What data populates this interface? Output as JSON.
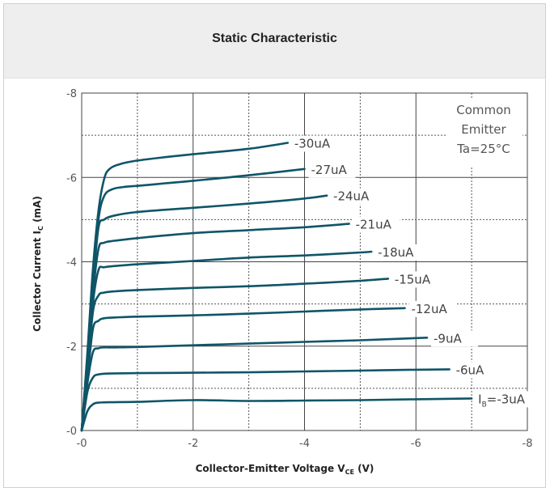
{
  "chart_data": {
    "type": "line",
    "title": "Static Characteristic",
    "xlabel": {
      "main": "Collector-Emitter Voltage V",
      "sub": "CE",
      "tail": " (V)"
    },
    "ylabel": {
      "main": "Collector Current I",
      "sub": "C",
      "tail": " (mA)"
    },
    "xlim": [
      0,
      -8
    ],
    "ylim": [
      0,
      -8
    ],
    "x_ticks": [
      {
        "value": 0,
        "label": "-0"
      },
      {
        "value": -2,
        "label": "-2"
      },
      {
        "value": -4,
        "label": "-4"
      },
      {
        "value": -6,
        "label": "-6"
      },
      {
        "value": -8,
        "label": "-8"
      }
    ],
    "y_ticks": [
      {
        "value": 0,
        "label": "-0"
      },
      {
        "value": -2,
        "label": "-2"
      },
      {
        "value": -4,
        "label": "-4"
      },
      {
        "value": -6,
        "label": "-6"
      },
      {
        "value": -8,
        "label": "-8"
      }
    ],
    "minor_grid": [
      -1,
      -3,
      -5,
      -7
    ],
    "grid": true,
    "annotation": [
      "Common",
      "Emitter",
      "Ta=25°C"
    ],
    "line_color": "#0f5568",
    "series": [
      {
        "name": "-30uA",
        "label_prefix": "",
        "label_sub": "",
        "label_text": "-30uA",
        "points": [
          [
            0,
            0
          ],
          [
            -0.1,
            -1.8
          ],
          [
            -0.2,
            -3.8
          ],
          [
            -0.3,
            -5.2
          ],
          [
            -0.4,
            -5.95
          ],
          [
            -0.5,
            -6.2
          ],
          [
            -0.7,
            -6.32
          ],
          [
            -1,
            -6.4
          ],
          [
            -1.5,
            -6.48
          ],
          [
            -2,
            -6.55
          ],
          [
            -3,
            -6.68
          ],
          [
            -3.7,
            -6.82
          ]
        ]
      },
      {
        "name": "-27uA",
        "label_prefix": "",
        "label_sub": "",
        "label_text": "-27uA",
        "points": [
          [
            0,
            0
          ],
          [
            -0.1,
            -1.7
          ],
          [
            -0.2,
            -3.6
          ],
          [
            -0.3,
            -5.0
          ],
          [
            -0.4,
            -5.55
          ],
          [
            -0.55,
            -5.72
          ],
          [
            -0.8,
            -5.78
          ],
          [
            -1,
            -5.8
          ],
          [
            -1.5,
            -5.86
          ],
          [
            -2,
            -5.92
          ],
          [
            -3,
            -6.05
          ],
          [
            -4,
            -6.2
          ]
        ]
      },
      {
        "name": "-24uA",
        "label_prefix": "",
        "label_sub": "",
        "label_text": "-24uA",
        "points": [
          [
            0,
            0
          ],
          [
            -0.1,
            -1.6
          ],
          [
            -0.2,
            -3.4
          ],
          [
            -0.3,
            -4.8
          ],
          [
            -0.4,
            -5.0
          ],
          [
            -0.6,
            -5.1
          ],
          [
            -1,
            -5.18
          ],
          [
            -2,
            -5.28
          ],
          [
            -3,
            -5.38
          ],
          [
            -4,
            -5.5
          ],
          [
            -4.4,
            -5.57
          ]
        ]
      },
      {
        "name": "-21uA",
        "label_prefix": "",
        "label_sub": "",
        "label_text": "-21uA",
        "points": [
          [
            0,
            0
          ],
          [
            -0.1,
            -1.5
          ],
          [
            -0.2,
            -3.2
          ],
          [
            -0.3,
            -4.3
          ],
          [
            -0.4,
            -4.45
          ],
          [
            -0.6,
            -4.5
          ],
          [
            -1,
            -4.56
          ],
          [
            -2,
            -4.68
          ],
          [
            -3,
            -4.75
          ],
          [
            -4,
            -4.82
          ],
          [
            -4.8,
            -4.9
          ]
        ]
      },
      {
        "name": "-18uA",
        "label_prefix": "",
        "label_sub": "",
        "label_text": "-18uA",
        "points": [
          [
            0,
            0
          ],
          [
            -0.1,
            -1.4
          ],
          [
            -0.2,
            -3.0
          ],
          [
            -0.3,
            -3.8
          ],
          [
            -0.4,
            -3.87
          ],
          [
            -0.6,
            -3.9
          ],
          [
            -1,
            -3.94
          ],
          [
            -2,
            -4.02
          ],
          [
            -3,
            -4.1
          ],
          [
            -4,
            -4.15
          ],
          [
            -5,
            -4.22
          ],
          [
            -5.2,
            -4.24
          ]
        ]
      },
      {
        "name": "-15uA",
        "label_prefix": "",
        "label_sub": "",
        "label_text": "-15uA",
        "points": [
          [
            0,
            0
          ],
          [
            -0.1,
            -1.3
          ],
          [
            -0.2,
            -2.8
          ],
          [
            -0.3,
            -3.2
          ],
          [
            -0.4,
            -3.27
          ],
          [
            -0.6,
            -3.3
          ],
          [
            -1,
            -3.33
          ],
          [
            -2,
            -3.38
          ],
          [
            -3,
            -3.42
          ],
          [
            -4,
            -3.48
          ],
          [
            -5,
            -3.55
          ],
          [
            -5.5,
            -3.6
          ]
        ]
      },
      {
        "name": "-12uA",
        "label_prefix": "",
        "label_sub": "",
        "label_text": "-12uA",
        "points": [
          [
            0,
            0
          ],
          [
            -0.1,
            -1.2
          ],
          [
            -0.2,
            -2.4
          ],
          [
            -0.3,
            -2.6
          ],
          [
            -0.4,
            -2.66
          ],
          [
            -0.6,
            -2.68
          ],
          [
            -1,
            -2.7
          ],
          [
            -2,
            -2.73
          ],
          [
            -3,
            -2.77
          ],
          [
            -4,
            -2.82
          ],
          [
            -5,
            -2.87
          ],
          [
            -5.8,
            -2.9
          ]
        ]
      },
      {
        "name": "-9uA",
        "label_prefix": "",
        "label_sub": "",
        "label_text": "-9uA",
        "points": [
          [
            0,
            0
          ],
          [
            -0.1,
            -1.1
          ],
          [
            -0.2,
            -1.85
          ],
          [
            -0.3,
            -1.95
          ],
          [
            -0.4,
            -1.97
          ],
          [
            -0.6,
            -1.97
          ],
          [
            -1,
            -1.98
          ],
          [
            -2,
            -2.02
          ],
          [
            -3,
            -2.06
          ],
          [
            -4,
            -2.1
          ],
          [
            -5,
            -2.14
          ],
          [
            -6.2,
            -2.2
          ]
        ]
      },
      {
        "name": "-6uA",
        "label_prefix": "",
        "label_sub": "",
        "label_text": "-6uA",
        "points": [
          [
            0,
            0
          ],
          [
            -0.1,
            -0.9
          ],
          [
            -0.2,
            -1.25
          ],
          [
            -0.3,
            -1.33
          ],
          [
            -0.5,
            -1.35
          ],
          [
            -1,
            -1.36
          ],
          [
            -2,
            -1.37
          ],
          [
            -3,
            -1.38
          ],
          [
            -4,
            -1.4
          ],
          [
            -5,
            -1.42
          ],
          [
            -6,
            -1.44
          ],
          [
            -6.6,
            -1.45
          ]
        ]
      },
      {
        "name": "-3uA",
        "label_prefix": "I",
        "label_sub": "B",
        "label_text": "=-3uA",
        "points": [
          [
            0,
            0
          ],
          [
            -0.1,
            -0.45
          ],
          [
            -0.2,
            -0.62
          ],
          [
            -0.3,
            -0.66
          ],
          [
            -0.5,
            -0.67
          ],
          [
            -1,
            -0.68
          ],
          [
            -2,
            -0.72
          ],
          [
            -3,
            -0.7
          ],
          [
            -4,
            -0.71
          ],
          [
            -5,
            -0.72
          ],
          [
            -6,
            -0.74
          ],
          [
            -7,
            -0.76
          ]
        ]
      }
    ]
  }
}
